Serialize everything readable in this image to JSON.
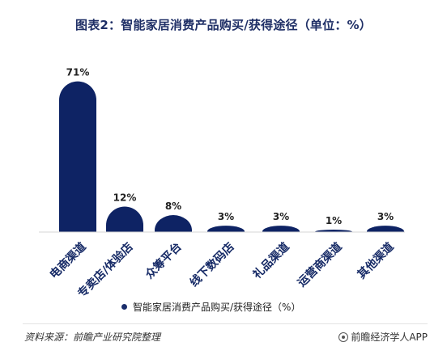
{
  "title": "图表2：智能家居消费产品购买/获得途径（单位：%）",
  "chart_data": {
    "type": "bar",
    "categories": [
      "电商渠道",
      "专卖店/体验店",
      "众筹平台",
      "线下数码店",
      "礼品渠道",
      "运营商渠道",
      "其他渠道"
    ],
    "values": [
      71,
      12,
      8,
      3,
      3,
      1,
      3
    ],
    "value_labels": [
      "71%",
      "12%",
      "8%",
      "3%",
      "3%",
      "1%",
      "3%"
    ],
    "ylim": [
      0,
      80
    ],
    "legend": "智能家居消费产品购买/获得途径（%）",
    "legend_position": "bottom",
    "grid": false,
    "bar_color": "#0e2364"
  },
  "footer": {
    "source": "资料来源：前瞻产业研究院整理",
    "credit": "前瞻经济学人APP"
  }
}
